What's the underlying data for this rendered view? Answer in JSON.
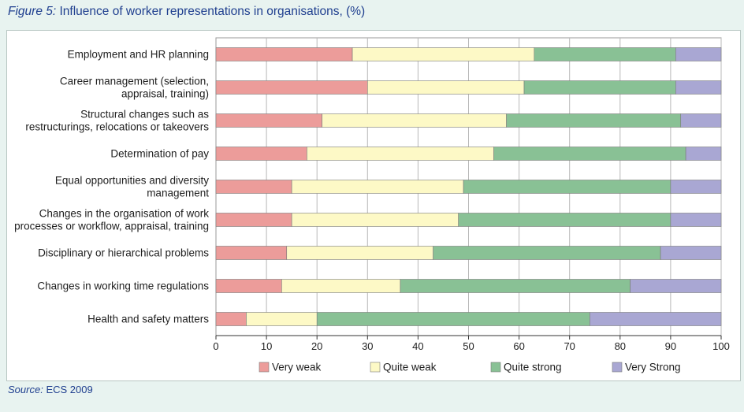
{
  "figure": {
    "number": "Figure 5:",
    "title": "Influence of worker representations in organisations, (%)"
  },
  "source": {
    "label": "Source:",
    "text": "ECS 2009"
  },
  "colors": {
    "Very weak": "#ec9c9a",
    "Quite weak": "#fdf9c6",
    "Quite strong": "#89c195",
    "Very Strong": "#a9a7d3"
  },
  "chart_data": {
    "type": "bar",
    "orientation": "horizontal",
    "stacked": true,
    "categories": [
      [
        "Employment and HR planning"
      ],
      [
        "Career management (selection,",
        "appraisal, training)"
      ],
      [
        "Structural changes such as",
        "restructurings, relocations or takeovers"
      ],
      [
        "Determination of pay"
      ],
      [
        "Equal opportunities and diversity",
        "management"
      ],
      [
        "Changes in the organisation of work",
        "processes or workflow, appraisal, training"
      ],
      [
        "Disciplinary or hierarchical problems"
      ],
      [
        "Changes in working time regulations"
      ],
      [
        "Health and safety matters"
      ]
    ],
    "series": [
      {
        "name": "Very weak",
        "values": [
          27,
          30,
          21,
          18,
          15,
          15,
          14,
          13,
          6
        ]
      },
      {
        "name": "Quite weak",
        "values": [
          36,
          31,
          36.5,
          37,
          34,
          33,
          29,
          23.5,
          14
        ]
      },
      {
        "name": "Quite strong",
        "values": [
          28,
          30,
          34.5,
          38,
          41,
          42,
          45,
          45.5,
          54
        ]
      },
      {
        "name": "Very Strong",
        "values": [
          9,
          9,
          8,
          7,
          10,
          10,
          12,
          18,
          26
        ]
      }
    ],
    "xlim": [
      0,
      100
    ],
    "xticks": [
      0,
      10,
      20,
      30,
      40,
      50,
      60,
      70,
      80,
      90,
      100
    ],
    "grid": "vertical",
    "legend_position": "bottom"
  }
}
